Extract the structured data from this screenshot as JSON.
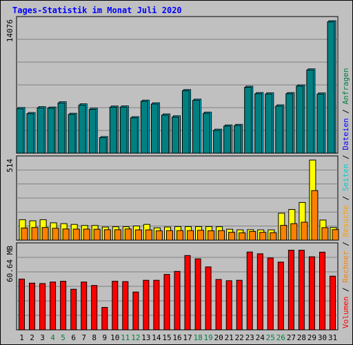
{
  "chart_data": {
    "type": "bar",
    "title": "Tages-Statistik im Monat Juli 2020",
    "categories": [
      "1",
      "2",
      "3",
      "4",
      "5",
      "6",
      "7",
      "8",
      "9",
      "10",
      "11",
      "12",
      "13",
      "14",
      "15",
      "16",
      "17",
      "18",
      "19",
      "20",
      "21",
      "22",
      "23",
      "24",
      "25",
      "26",
      "27",
      "28",
      "29",
      "30",
      "31"
    ],
    "weekend_days": [
      "4",
      "5",
      "11",
      "12",
      "18",
      "19",
      "25",
      "26"
    ],
    "panels": [
      {
        "id": "top",
        "ymax": 14076,
        "ymax_label": "14076",
        "series": [
          {
            "name": "Anfragen",
            "values": [
              4850,
              4320,
              4940,
              4900,
              5460,
              4240,
              5240,
              4770,
              1770,
              5010,
              5020,
              3880,
              5630,
              5350,
              4170,
              3970,
              6760,
              5740,
              4360,
              2550,
              3000,
              3060,
              7120,
              6440,
              6410,
              5130,
              6440,
              7260,
              8960,
              6400,
              14076
            ]
          },
          {
            "name": "Dateien",
            "values": [
              4720,
              4200,
              4820,
              4780,
              5340,
              4120,
              5120,
              4650,
              1650,
              4890,
              4900,
              3760,
              5510,
              5230,
              4050,
              3850,
              6640,
              5620,
              4240,
              2430,
              2880,
              2940,
              7000,
              6320,
              6290,
              5010,
              6320,
              7140,
              8840,
              6280,
              13960
            ]
          }
        ]
      },
      {
        "id": "middle",
        "ymax": 514,
        "ymax_label": "514",
        "series": [
          {
            "name": "Seiten",
            "values": [
              131,
              124,
              131,
              111,
              106,
              101,
              94,
              94,
              84,
              86,
              86,
              91,
              101,
              79,
              84,
              87,
              87,
              87,
              87,
              86,
              70,
              66,
              67,
              66,
              66,
              173,
              197,
              242,
              514,
              129,
              81
            ]
          },
          {
            "name": "Besuche",
            "values": [
              78,
              81,
              81,
              76,
              72,
              71,
              71,
              70,
              67,
              67,
              72,
              66,
              66,
              60,
              61,
              61,
              61,
              63,
              60,
              61,
              50,
              47,
              56,
              50,
              48,
              95,
              106,
              115,
              318,
              80,
              68
            ]
          }
        ]
      },
      {
        "id": "bottom",
        "ymax": 60.64,
        "ymax_label": "60.64 MB",
        "series": [
          {
            "name": "Volumen",
            "values": [
              37.2,
              34.2,
              33.9,
              35.0,
              35.6,
              29.7,
              35.0,
              32.5,
              16.4,
              35.6,
              35.3,
              27.7,
              36.3,
              36.3,
              40.6,
              42.8,
              54.4,
              52.0,
              46.1,
              36.9,
              36.0,
              36.3,
              57.0,
              55.7,
              52.6,
              49.6,
              58.3,
              58.3,
              53.5,
              56.9,
              39.3
            ]
          }
        ]
      }
    ],
    "legend": [
      "Volumen",
      "/",
      "Rechner",
      "/",
      "Besuche",
      "/",
      "Seiten",
      "/",
      "Dateien",
      "/",
      "Anfragen"
    ],
    "xlabel": "",
    "ylabel": ""
  },
  "colors": {
    "background": "#c0c0c0",
    "plot": "#c0c0c0",
    "grid": "#808080",
    "title": "#0000ff",
    "axis_label": "#000000",
    "weekday": "#000000",
    "weekend": "#008040",
    "Anfragen": "#00e0ff",
    "Dateien": "#008080",
    "Seiten": "#ffff00",
    "Besuche": "#ff8000",
    "Volumen": "#ff0000",
    "Rechner": "#ff8000",
    "legend_Volumen": "#ff0000",
    "legend_Rechner": "#ff8000",
    "legend_Besuche": "#ffa000",
    "legend_Seiten": "#00d0d0",
    "legend_Dateien": "#0000ff",
    "legend_Anfragen": "#008040",
    "legend_sep": "#000000"
  }
}
